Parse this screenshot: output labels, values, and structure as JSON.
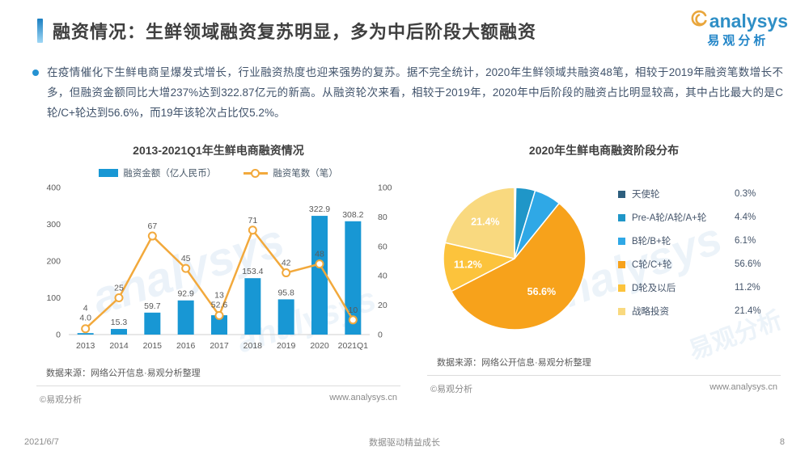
{
  "header": {
    "title": "融资情况：生鲜领域融资复苏明显，多为中后阶段大额融资",
    "logo": {
      "brand": "analysys",
      "brand_cn": "易观分析"
    }
  },
  "summary": {
    "text": "在疫情催化下生鲜电商呈爆发式增长，行业融资热度也迎来强势的复苏。据不完全统计，2020年生鲜领域共融资48笔，相较于2019年融资笔数增长不多，但融资金额同比大增237%达到322.87亿元的新高。从融资轮次来看，相较于2019年，2020年中后阶段的融资占比明显较高，其中占比最大的是C轮/C+轮达到56.6%，而19年该轮次占比仅5.2%。"
  },
  "chart_data": [
    {
      "type": "bar",
      "subtype": "combo-bar-line",
      "title": "2013-2021Q1年生鲜电商融资情况",
      "categories": [
        "2013",
        "2014",
        "2015",
        "2016",
        "2017",
        "2018",
        "2019",
        "2020",
        "2021Q1"
      ],
      "series": [
        {
          "name": "融资金额（亿人民币）",
          "type": "bar",
          "axis": "left",
          "color": "#1897d4",
          "values": [
            4.0,
            15.3,
            59.7,
            92.9,
            52.6,
            153.4,
            95.8,
            322.9,
            308.2
          ],
          "labels": [
            "4.0",
            "15.3",
            "59.7",
            "92.9",
            "52.6",
            "153.4",
            "95.8",
            "322.9",
            "308.2"
          ]
        },
        {
          "name": "融资笔数（笔）",
          "type": "line",
          "axis": "right",
          "color": "#f2a93c",
          "values": [
            4,
            25,
            67,
            45,
            13,
            71,
            42,
            48,
            10
          ],
          "labels": [
            "4",
            "25",
            "67",
            "45",
            "13",
            "71",
            "42",
            "48",
            "10"
          ]
        }
      ],
      "left_axis": {
        "ticks": [
          0,
          100,
          200,
          300,
          400
        ],
        "max": 400
      },
      "right_axis": {
        "ticks": [
          0,
          20,
          40,
          60,
          80,
          100
        ],
        "max": 100
      },
      "grid": false,
      "legend_position": "top",
      "source": "数据来源：网络公开信息·易观分析整理",
      "footer": {
        "left": "©易观分析",
        "right": "www.analysys.cn"
      }
    },
    {
      "type": "pie",
      "title": "2020年生鲜电商融资阶段分布",
      "start_angle_deg": 0,
      "direction": "clockwise",
      "legend_position": "right",
      "slices": [
        {
          "label": "天使轮",
          "value": 0.3,
          "display": "0.3%",
          "color": "#2e5f7e"
        },
        {
          "label": "Pre-A轮/A轮/A+轮",
          "value": 4.4,
          "display": "4.4%",
          "color": "#1f96c8"
        },
        {
          "label": "B轮/B+轮",
          "value": 6.1,
          "display": "6.1%",
          "color": "#2fa8e6"
        },
        {
          "label": "C轮/C+轮",
          "value": 56.6,
          "display": "56.6%",
          "color": "#f7a21b",
          "slice_label": "56.6%"
        },
        {
          "label": "D轮及以后",
          "value": 11.2,
          "display": "11.2%",
          "color": "#fcc33c",
          "slice_label": "11.2%"
        },
        {
          "label": "战略投资",
          "value": 21.4,
          "display": "21.4%",
          "color": "#f9d97f",
          "slice_label": "21.4%"
        }
      ],
      "source": "数据来源：网络公开信息·易观分析整理",
      "footer": {
        "left": "©易观分析",
        "right": "www.analysys.cn"
      }
    }
  ],
  "page_footer": {
    "date": "2021/6/7",
    "slogan": "数据驱动精益成长",
    "page": "8"
  },
  "watermark": {
    "brand": "analysys",
    "brand_cn": "易观分析"
  },
  "colors": {
    "accent_blue": "#1897d4",
    "accent_orange": "#f2a93c",
    "title_gray": "#3f3f3f",
    "logo_blue": "#2386c8",
    "logo_gold": "#e9a63c"
  }
}
